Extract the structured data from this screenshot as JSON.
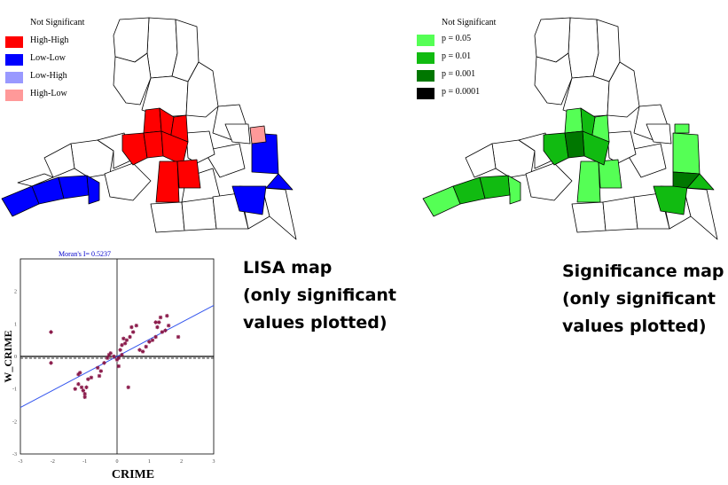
{
  "lisa_legend": {
    "items": [
      {
        "label": "Not Significant",
        "color": "#ffffff"
      },
      {
        "label": "High-High",
        "color": "#ff0000"
      },
      {
        "label": "Low-Low",
        "color": "#0000ff"
      },
      {
        "label": "Low-High",
        "color": "#9999ff"
      },
      {
        "label": "High-Low",
        "color": "#ff9999"
      }
    ]
  },
  "sig_legend": {
    "items": [
      {
        "label": "Not Significant",
        "color": "#ffffff"
      },
      {
        "label": "p = 0.05",
        "color": "#55ff55"
      },
      {
        "label": "p = 0.01",
        "color": "#11bb11"
      },
      {
        "label": "p = 0.001",
        "color": "#007700"
      },
      {
        "label": "p = 0.0001",
        "color": "#000000"
      }
    ]
  },
  "captions": {
    "lisa": [
      "LISA map",
      "(only significant",
      "values plotted)"
    ],
    "sig": [
      "Significance map",
      "(only significant",
      "values plotted)"
    ]
  },
  "chart_data": {
    "type": "scatter",
    "title": "Moran's I= 0.5237",
    "xlabel": "CRIME",
    "ylabel": "W_CRIME",
    "xlim": [
      -3,
      3
    ],
    "ylim": [
      -3,
      3
    ],
    "xticks": [
      "-3",
      "-2",
      "-1",
      "0",
      "1",
      "2",
      "3"
    ],
    "yticks": [
      "-3",
      "-2",
      "-1",
      "0",
      "1",
      "2"
    ],
    "regression_line": {
      "slope": 0.5237,
      "intercept": 0
    },
    "x": [
      -2.05,
      -2.05,
      -1.3,
      -1.2,
      -1.1,
      -1.0,
      -1.0,
      -1.05,
      -0.95,
      -0.9,
      -0.8,
      -1.2,
      -1.15,
      -0.5,
      -0.55,
      -0.6,
      -0.4,
      -0.3,
      -0.2,
      -0.1,
      0.0,
      0.05,
      0.1,
      0.15,
      0.25,
      0.3,
      0.4,
      0.5,
      0.45,
      0.6,
      0.7,
      0.8,
      0.9,
      1.0,
      1.1,
      1.2,
      1.25,
      1.3,
      1.35,
      1.4,
      1.5,
      1.6,
      1.55,
      1.2,
      1.9,
      0.35,
      0.15,
      0.05,
      -0.25,
      0.2
    ],
    "y": [
      0.75,
      -0.2,
      -1.0,
      -0.85,
      -0.95,
      -1.15,
      -1.25,
      -1.05,
      -0.95,
      -0.7,
      -0.65,
      -0.55,
      -0.5,
      -0.45,
      -0.6,
      -0.35,
      -0.2,
      -0.05,
      0.1,
      0.0,
      -0.1,
      -0.3,
      0.2,
      0.35,
      0.4,
      0.5,
      0.6,
      0.75,
      0.9,
      0.95,
      0.2,
      0.15,
      0.3,
      0.45,
      0.5,
      0.6,
      0.9,
      1.05,
      1.2,
      0.75,
      0.8,
      0.95,
      1.25,
      1.05,
      0.6,
      -0.95,
      0.05,
      -0.05,
      0.05,
      0.55
    ]
  }
}
